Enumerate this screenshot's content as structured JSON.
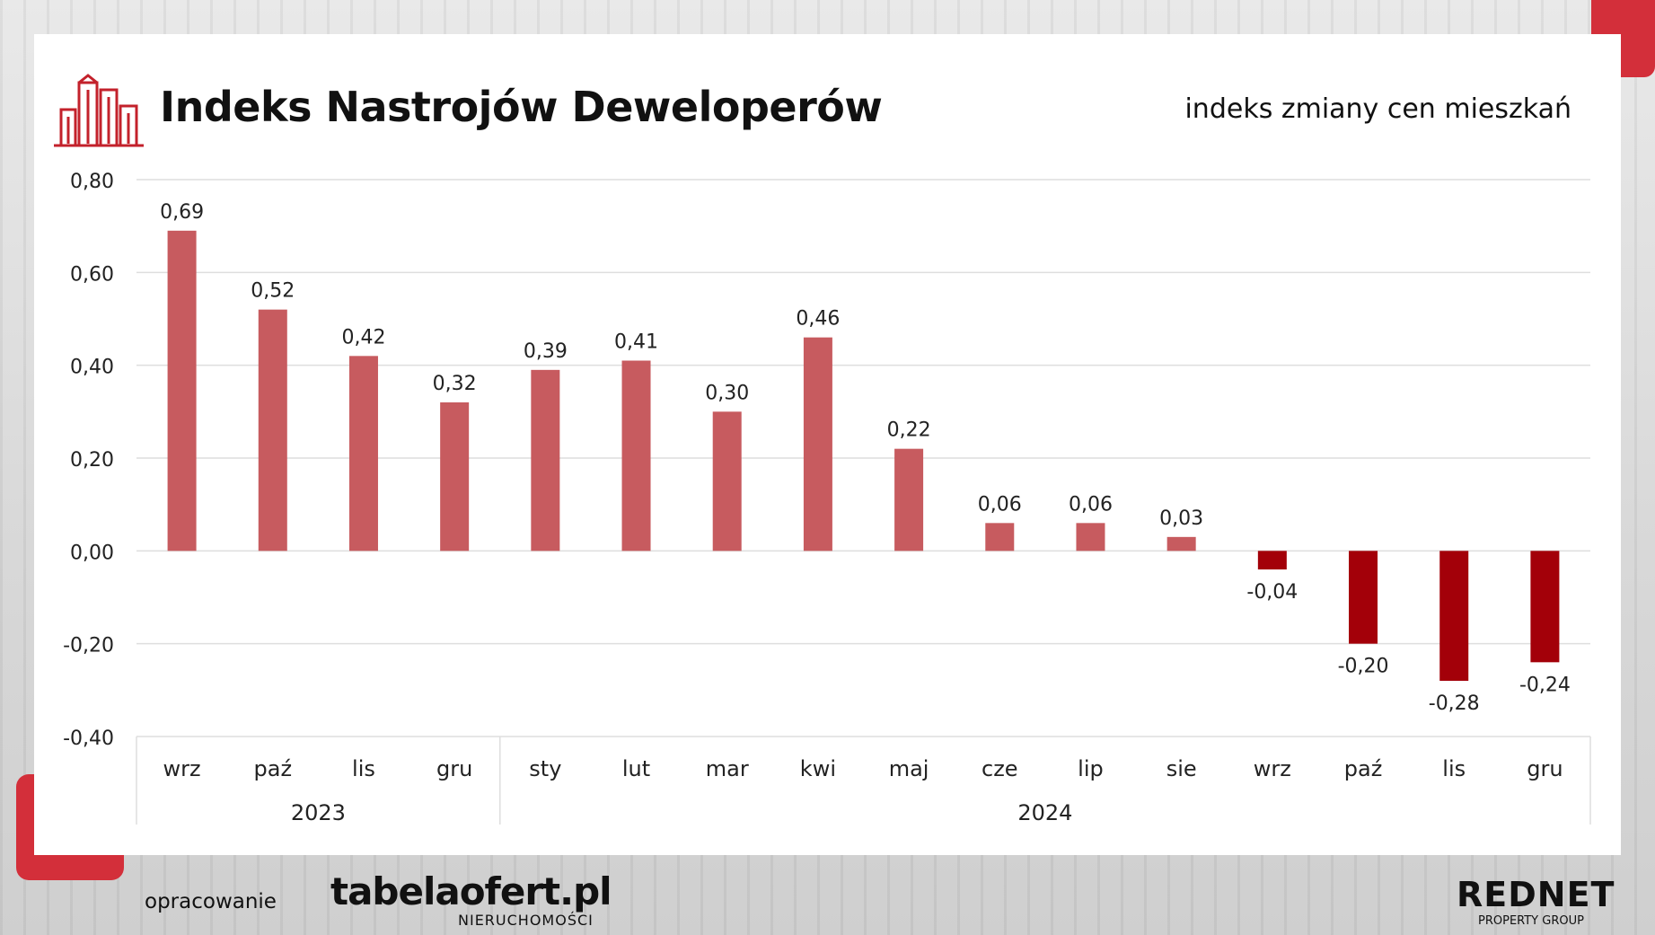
{
  "header": {
    "title": "Indeks Nastrojów Deweloperów",
    "subtitle": "indeks zmiany cen mieszkań"
  },
  "footer": {
    "label": "opracowanie",
    "brand_main": "tabelaofert.pl",
    "brand_sub": "NIERUCHOMOŚCI",
    "partner_main": "REDNET",
    "partner_sub": "PROPERTY GROUP"
  },
  "icons": {
    "header_logo": "city-buildings-icon"
  },
  "colors": {
    "positive_bar": "#c75b5f",
    "negative_bar": "#a30009",
    "accent": "#d32f3a"
  },
  "chart_data": {
    "type": "bar",
    "categories": [
      "wrz",
      "paź",
      "lis",
      "gru",
      "sty",
      "lut",
      "mar",
      "kwi",
      "maj",
      "cze",
      "lip",
      "sie",
      "wrz",
      "paź",
      "lis",
      "gru"
    ],
    "groups": [
      {
        "label": "2023",
        "count": 4
      },
      {
        "label": "2024",
        "count": 12
      }
    ],
    "values": [
      0.69,
      0.52,
      0.42,
      0.32,
      0.39,
      0.41,
      0.3,
      0.46,
      0.22,
      0.06,
      0.06,
      0.03,
      -0.04,
      -0.2,
      -0.28,
      -0.24
    ],
    "value_labels": [
      "0,69",
      "0,52",
      "0,42",
      "0,32",
      "0,39",
      "0,41",
      "0,30",
      "0,46",
      "0,22",
      "0,06",
      "0,06",
      "0,03",
      "-0,04",
      "-0,20",
      "-0,28",
      "-0,24"
    ],
    "yticks": [
      0.8,
      0.6,
      0.4,
      0.2,
      0.0,
      -0.2,
      -0.4
    ],
    "ytick_labels": [
      "0,80",
      "0,60",
      "0,40",
      "0,20",
      "0,00",
      "-0,20",
      "-0,40"
    ],
    "ylim": [
      -0.4,
      0.8
    ],
    "title": "",
    "xlabel": "",
    "ylabel": "",
    "grid": true,
    "legend": "none"
  }
}
